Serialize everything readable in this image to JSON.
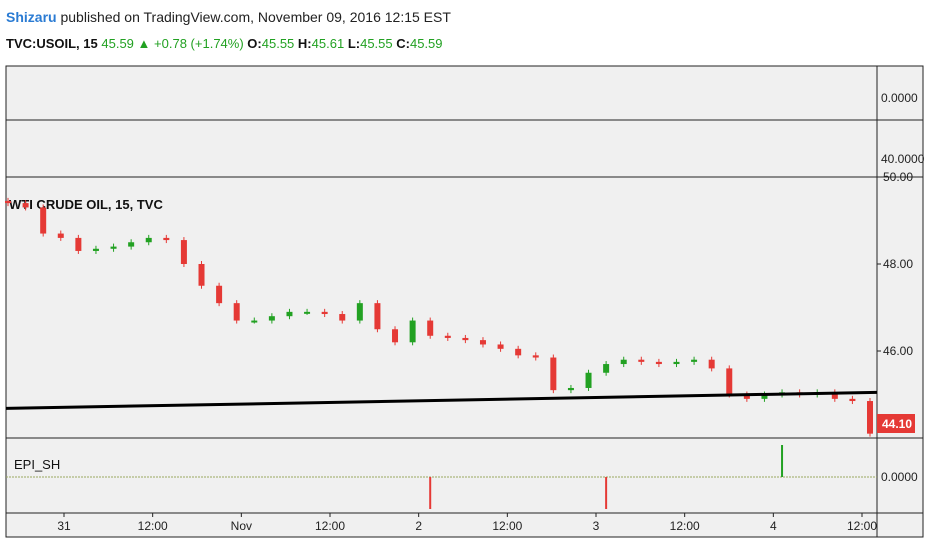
{
  "header": {
    "author": "Shizaru",
    "published_text": "published on TradingView.com, November 09, 2016 12:15 EST"
  },
  "ohlc": {
    "symbol": "TVC:USOIL, 15",
    "last": "45.59",
    "change": "+0.78 (+1.74%)",
    "o_label": "O:",
    "o": "45.55",
    "h_label": "H:",
    "h": "45.61",
    "l_label": "L:",
    "l": "45.55",
    "c_label": "C:",
    "c": "45.59"
  },
  "colors": {
    "up": "#22a122",
    "down": "#e53935",
    "panel_bg": "#f0f0f0",
    "trendline": "#000000",
    "price_tag": "#e53935"
  },
  "panels": {
    "top1_tick": "0.0000",
    "top2_tick": "40.0000",
    "main_title": "WTI CRUDE OIL, 15, TVC",
    "indicator_title": "EPI_SH",
    "indicator_tick": "0.0000"
  },
  "price_tag": "44.10",
  "chart_data": {
    "type": "line",
    "title": "WTI CRUDE OIL, 15, TVC",
    "ylim": [
      44.0,
      50.0
    ],
    "y_ticks": [
      "50.00",
      "48.00",
      "46.00"
    ],
    "x_ticks": [
      "31",
      "12:00",
      "Nov",
      "12:00",
      "2",
      "12:00",
      "3",
      "12:00",
      "4",
      "12:00"
    ],
    "x": [
      0,
      2,
      4,
      6,
      8,
      10,
      12,
      14,
      16,
      18,
      20,
      22,
      24,
      26,
      28,
      30,
      32,
      34,
      36,
      38,
      40,
      42,
      44,
      46,
      48,
      50,
      52,
      54,
      56,
      58,
      60,
      62,
      64,
      66,
      68,
      70,
      72,
      74,
      76,
      78,
      80,
      82,
      84,
      86,
      88,
      90,
      92,
      94,
      96,
      98
    ],
    "series": [
      {
        "values": [
          49.4,
          49.3,
          48.7,
          48.6,
          48.3,
          48.35,
          48.4,
          48.5,
          48.6,
          48.55,
          48.0,
          47.5,
          47.1,
          46.7,
          46.7,
          46.8,
          46.9,
          46.9,
          46.85,
          46.7,
          47.1,
          46.5,
          46.2,
          46.7,
          46.35,
          46.3,
          46.25,
          46.15,
          46.05,
          45.9,
          45.85,
          45.1,
          45.15,
          45.5,
          45.7,
          45.8,
          45.75,
          45.7,
          45.75,
          45.8,
          45.6,
          45.0,
          44.9,
          45.0,
          45.05,
          45.0,
          45.05,
          44.9,
          44.85,
          44.1
        ]
      },
      {
        "name": "EPI_SH",
        "values": [
          0,
          0,
          0,
          0,
          0,
          0,
          0,
          0,
          0,
          0,
          0,
          0,
          0,
          0,
          0,
          0,
          0,
          0,
          0,
          0,
          0,
          0,
          0,
          0,
          -1,
          0,
          0,
          0,
          0,
          0,
          0,
          0,
          0,
          0,
          -1,
          0,
          0,
          0,
          0,
          0,
          0,
          0,
          0,
          0,
          1,
          0,
          0,
          0,
          0,
          0
        ]
      }
    ],
    "trendline": {
      "x": [
        0,
        98
      ],
      "y": [
        44.68,
        45.05
      ]
    }
  }
}
